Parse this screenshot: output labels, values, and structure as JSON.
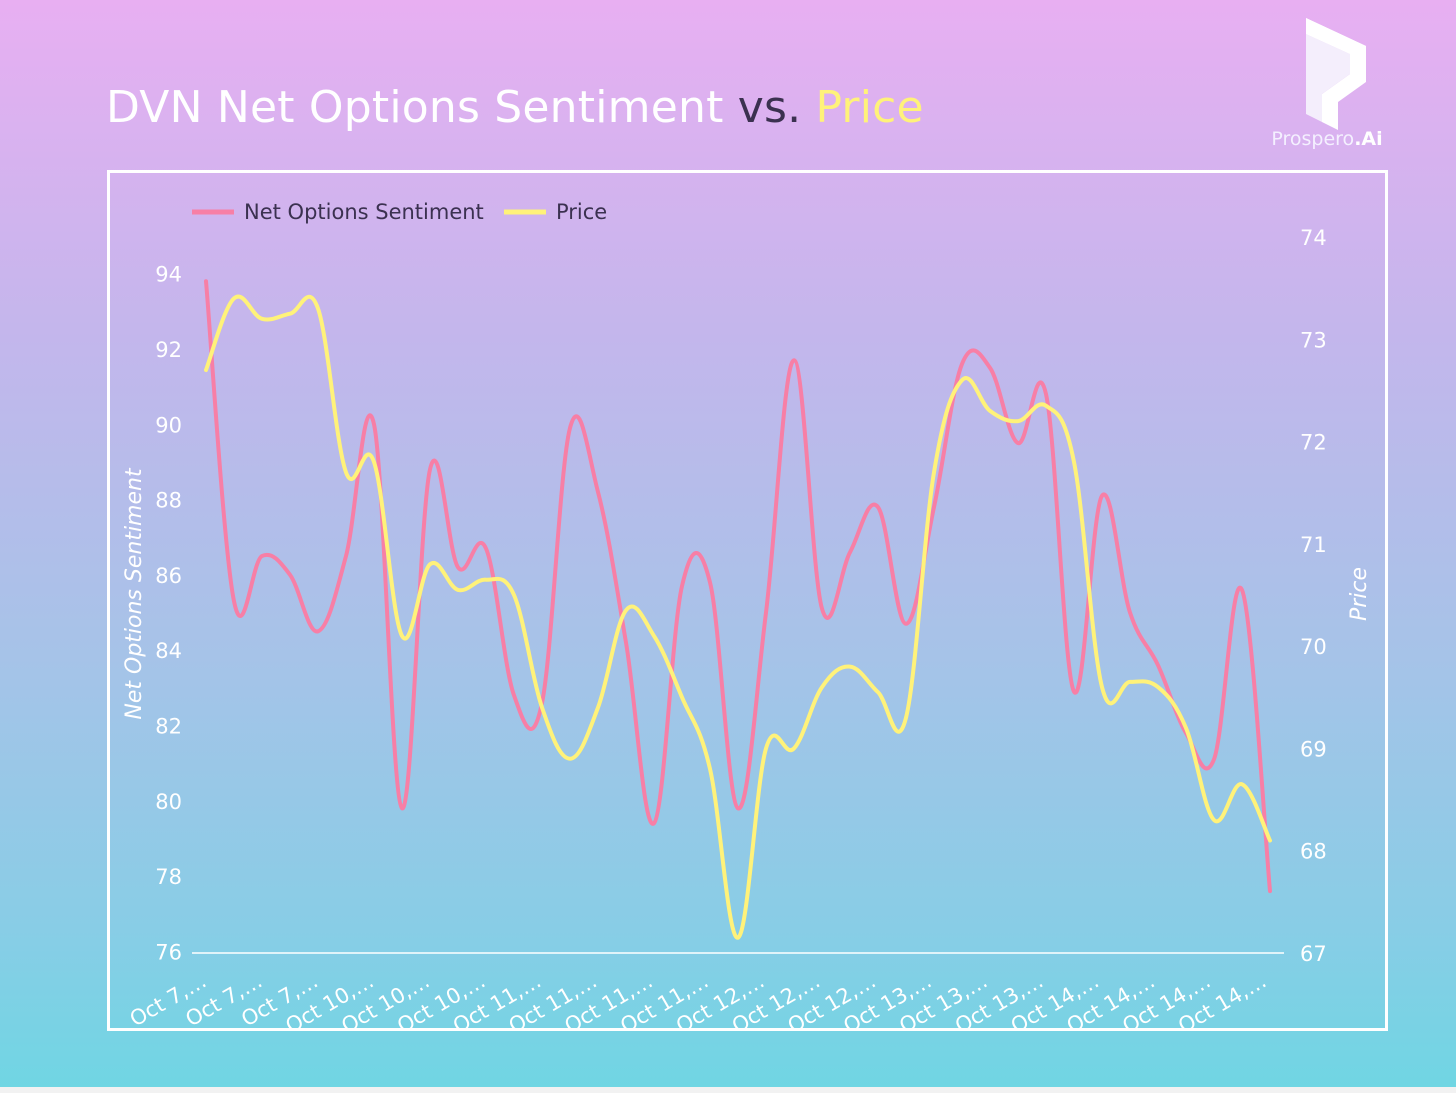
{
  "header": {
    "title_main": "DVN Net Options Sentiment",
    "title_vs": "vs.",
    "title_price": "Price"
  },
  "logo": {
    "icon": "prospero-logo-icon",
    "brand_name": "Prospero",
    "brand_suffix": ".Ai"
  },
  "colors": {
    "sentiment_line": "#f77fa6",
    "price_line": "#fff27a",
    "frame": "#ffffff",
    "title_vs": "#3b3150"
  },
  "chart_data": {
    "type": "line",
    "title": "DVN Net Options Sentiment vs. Price",
    "x_tick_labels": [
      "Oct 7,…",
      "Oct 7,…",
      "Oct 7,…",
      "Oct 10,…",
      "Oct 10,…",
      "Oct 10,…",
      "Oct 11,…",
      "Oct 11,…",
      "Oct 11,…",
      "Oct 11,…",
      "Oct 12,…",
      "Oct 12,…",
      "Oct 12,…",
      "Oct 13,…",
      "Oct 13,…",
      "Oct 13,…",
      "Oct 14,…",
      "Oct 14,…",
      "Oct 14,…",
      "Oct 14,…"
    ],
    "left_axis": {
      "label": "Net Options Sentiment",
      "min": 75,
      "max": 95,
      "ticks": [
        76,
        78,
        80,
        82,
        84,
        86,
        88,
        90,
        92,
        94
      ]
    },
    "right_axis": {
      "label": "Price",
      "min": 67,
      "max": 74,
      "ticks": [
        67,
        68,
        69,
        70,
        71,
        72,
        73,
        74
      ]
    },
    "legend": {
      "position": "top-left"
    },
    "grid": false,
    "series": [
      {
        "name": "Net Options Sentiment",
        "axis": "left",
        "values": [
          93.8,
          85.3,
          86.5,
          86.0,
          84.5,
          86.5,
          90.0,
          79.8,
          88.8,
          86.2,
          86.7,
          82.8,
          82.6,
          89.9,
          88.2,
          84.2,
          79.4,
          85.7,
          85.8,
          79.8,
          85.0,
          91.7,
          85.1,
          86.6,
          87.8,
          84.7,
          87.8,
          91.6,
          91.5,
          89.5,
          90.8,
          82.9,
          88.1,
          85.0,
          83.6,
          81.8,
          81.1,
          85.6,
          77.6
        ]
      },
      {
        "name": "Price",
        "axis": "right",
        "values": [
          72.7,
          73.4,
          73.2,
          73.25,
          73.3,
          71.7,
          71.8,
          70.1,
          70.8,
          70.55,
          70.65,
          70.5,
          69.4,
          68.9,
          69.4,
          70.35,
          70.1,
          69.5,
          68.8,
          67.15,
          69.0,
          69.0,
          69.6,
          69.8,
          69.55,
          69.3,
          71.7,
          72.6,
          72.3,
          72.2,
          72.35,
          71.8,
          69.6,
          69.65,
          69.6,
          69.2,
          68.3,
          68.65,
          68.1
        ]
      }
    ]
  }
}
